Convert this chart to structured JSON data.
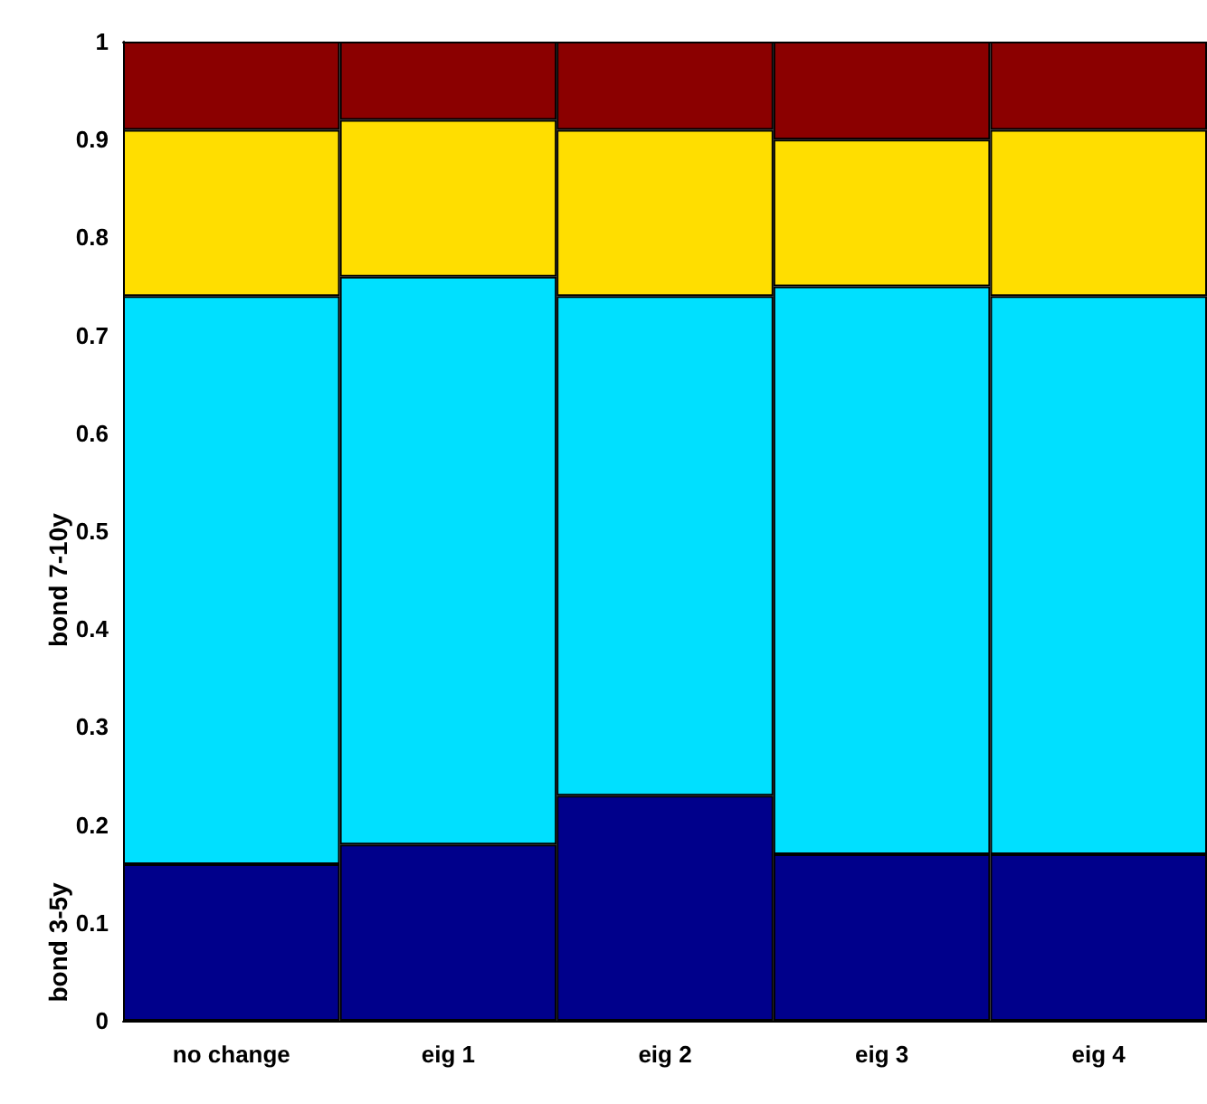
{
  "chart_data": {
    "type": "bar",
    "stacked": true,
    "categories": [
      "no change",
      "eig 1",
      "eig 2",
      "eig 3",
      "eig 4"
    ],
    "series": [
      {
        "name": "bond 3-5y",
        "color": "#00008b",
        "values": [
          0.16,
          0.18,
          0.23,
          0.17,
          0.17
        ]
      },
      {
        "name": "bond 7-10y",
        "color": "#00e0ff",
        "values": [
          0.58,
          0.58,
          0.51,
          0.58,
          0.57
        ]
      },
      {
        "color": "#ffde00",
        "values": [
          0.17,
          0.16,
          0.17,
          0.15,
          0.17
        ]
      },
      {
        "color": "#8b0000",
        "values": [
          0.09,
          0.08,
          0.09,
          0.1,
          0.09
        ]
      }
    ],
    "ylim": [
      0,
      1
    ],
    "yticks": [
      0,
      0.1,
      0.2,
      0.3,
      0.4,
      0.5,
      0.6,
      0.7,
      0.8,
      0.9,
      1
    ],
    "grid": false,
    "legend": false
  }
}
